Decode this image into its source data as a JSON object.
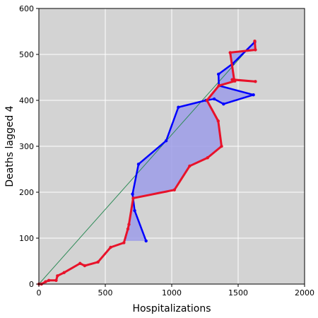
{
  "chart_data": {
    "type": "line",
    "title": "",
    "xlabel": "Hospitalizations",
    "ylabel": "Deaths lagged 4",
    "xlim": [
      0,
      2000
    ],
    "ylim": [
      0,
      600
    ],
    "xticks": [
      0,
      500,
      1000,
      1500,
      2000
    ],
    "yticks": [
      0,
      100,
      200,
      300,
      400,
      500,
      600
    ],
    "grid": true,
    "background": "#d3d3d3",
    "colors": {
      "blue": "#0000ff",
      "red": "#e8122a",
      "fill": "#9c9ce8",
      "diagonal": "#2e8b57"
    },
    "reference_line": {
      "x": [
        0,
        1630
      ],
      "y": [
        0,
        530
      ]
    },
    "fill_between": {
      "upper": "blue",
      "lower": "red"
    },
    "series": [
      {
        "color": "blue",
        "x": [
          807,
          721,
          705,
          750,
          958,
          1050,
          1257,
          1320,
          1390,
          1615,
          1355,
          1352,
          1460,
          1625
        ],
        "y": [
          94,
          160,
          196,
          261,
          312,
          385,
          400,
          403,
          392,
          412,
          432,
          457,
          480,
          527
        ]
      },
      {
        "color": "red",
        "x": [
          0,
          20,
          50,
          75,
          130,
          140,
          190,
          310,
          345,
          445,
          540,
          640,
          670,
          678,
          710,
          1020,
          1135,
          1270,
          1375,
          1350,
          1265,
          1355,
          1475,
          1455,
          1630,
          1470,
          1440,
          1630,
          1625
        ],
        "y": [
          0,
          0,
          5,
          8,
          8,
          18,
          25,
          45,
          40,
          48,
          80,
          90,
          120,
          130,
          187,
          205,
          257,
          275,
          300,
          355,
          400,
          432,
          442,
          445,
          441,
          445,
          504,
          510,
          529
        ]
      }
    ]
  }
}
